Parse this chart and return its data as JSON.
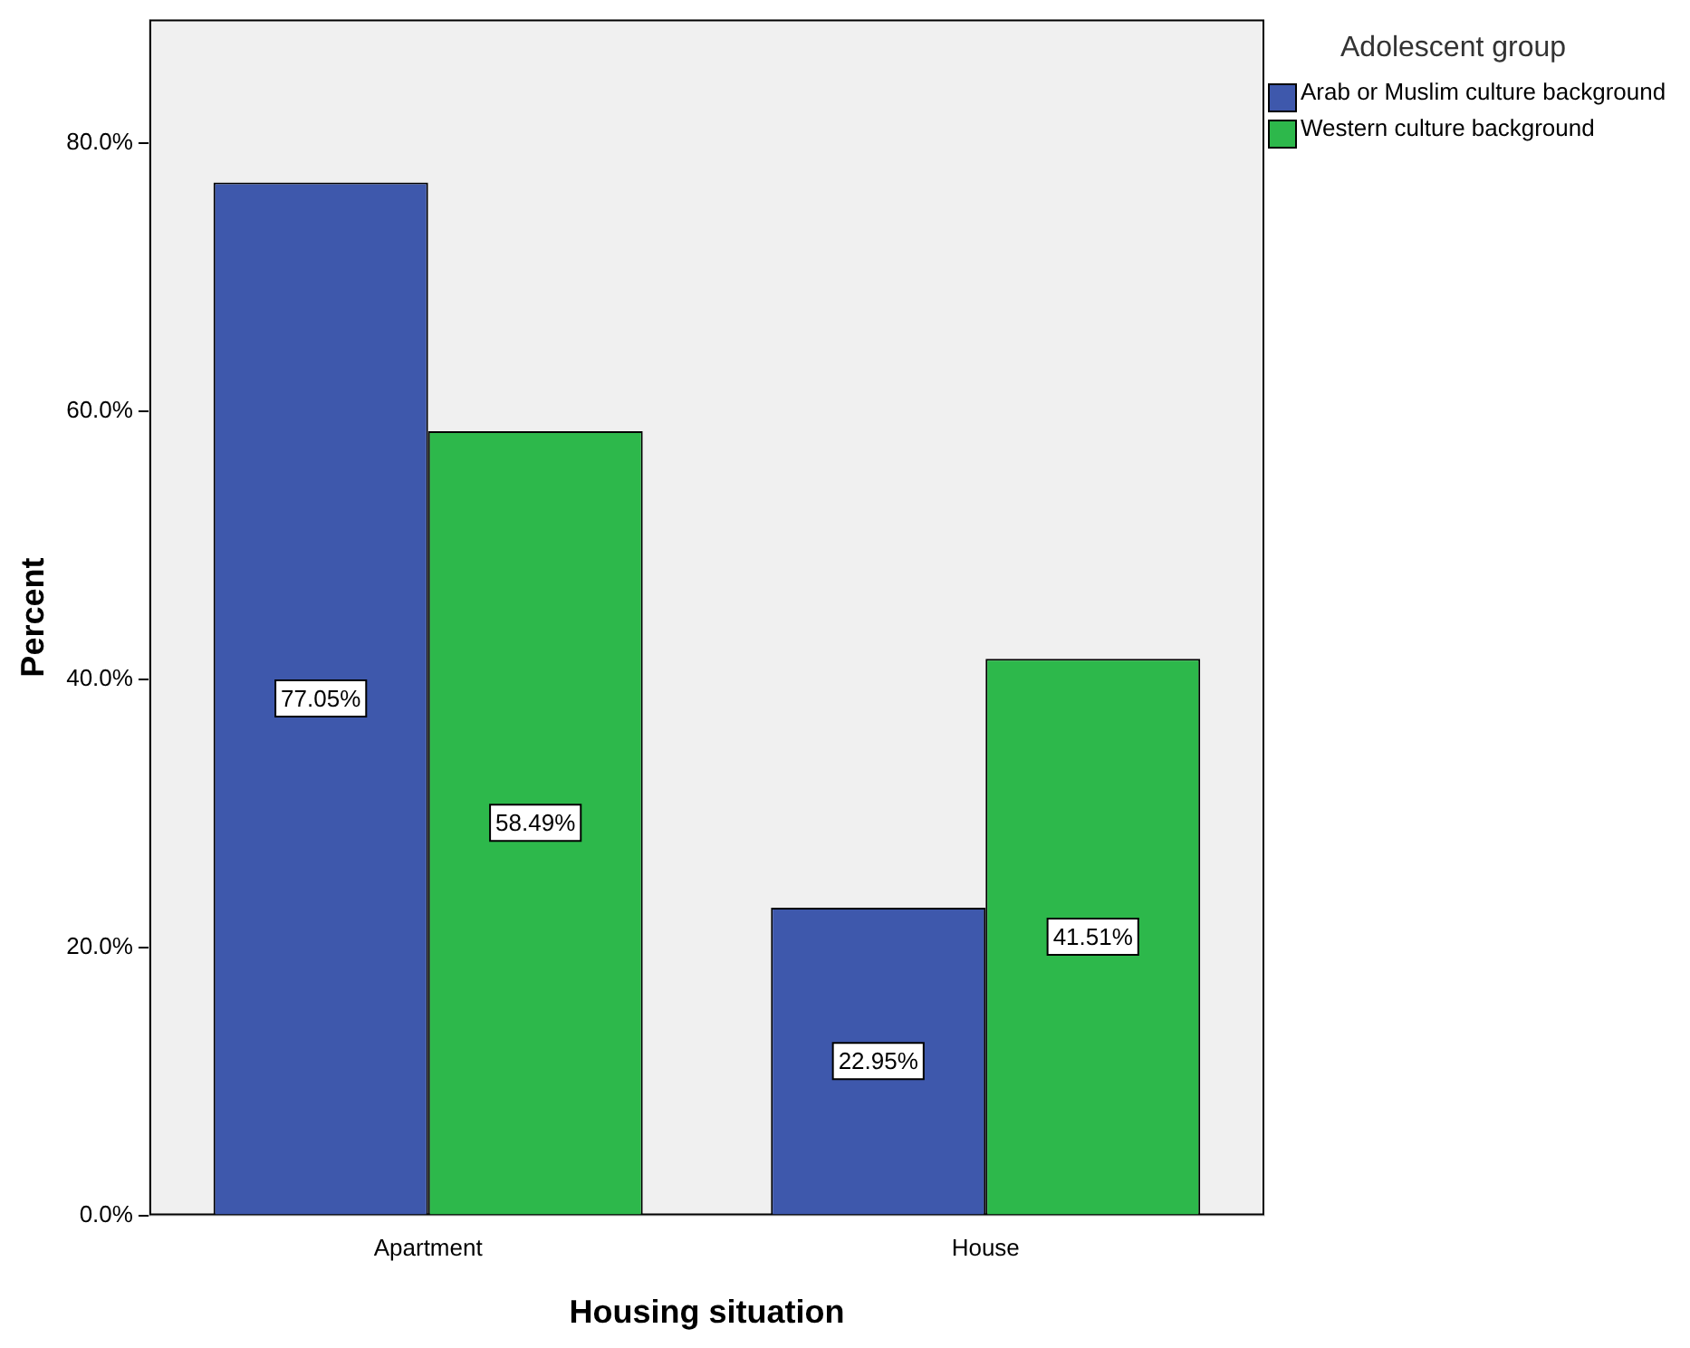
{
  "chart_data": {
    "type": "bar",
    "xlabel": "Housing situation",
    "ylabel": "Percent",
    "legend_title": "Adolescent group",
    "legend": "top right",
    "grid": false,
    "categories": [
      "Apartment",
      "House"
    ],
    "series": [
      {
        "name": "Arab or Muslim culture background",
        "color": "#3e58ac",
        "values": [
          77.05,
          22.95
        ],
        "value_labels": [
          "77.05%",
          "22.95%"
        ]
      },
      {
        "name": "Western culture background",
        "color": "#2db84b",
        "values": [
          58.49,
          41.51
        ],
        "value_labels": [
          "58.49%",
          "41.51%"
        ]
      }
    ],
    "ylim": [
      0,
      89.2
    ],
    "yticks": [
      {
        "value": 0,
        "label": "0.0%"
      },
      {
        "value": 20,
        "label": "20.0%"
      },
      {
        "value": 40,
        "label": "40.0%"
      },
      {
        "value": 60,
        "label": "60.0%"
      },
      {
        "value": 80,
        "label": "80.0%"
      }
    ]
  }
}
